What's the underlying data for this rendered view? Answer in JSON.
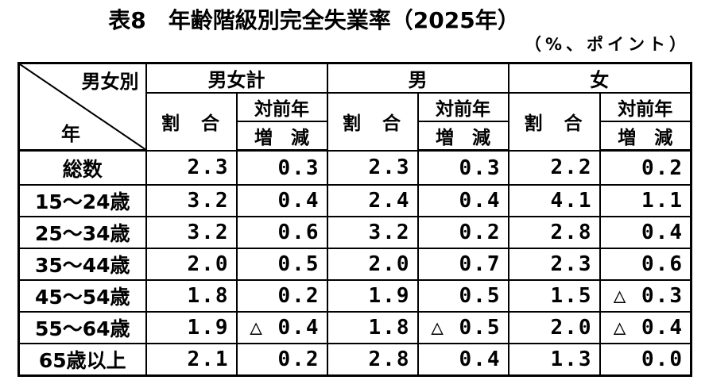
{
  "page": {
    "background_color": "#ffffff",
    "text_color": "#000000"
  },
  "title": "表8　年齢階級別完全失業率（2025年）",
  "unit_note": "（%、ポイント）",
  "table": {
    "corner": {
      "top_right_label": "男女別",
      "bottom_left_label": "年"
    },
    "groups": [
      {
        "label": "男女計"
      },
      {
        "label": "男"
      },
      {
        "label": "女"
      }
    ],
    "subheaders": {
      "ratio": "割　合",
      "yoy_line1": "対前年",
      "yoy_line2": "増　減"
    },
    "rows": [
      {
        "label": "総数",
        "bold": true,
        "values": [
          "2.3",
          "0.3",
          "2.3",
          "0.3",
          "2.2",
          "0.2"
        ]
      },
      {
        "label": "15〜24歳",
        "bold": false,
        "values": [
          "3.2",
          "0.4",
          "2.4",
          "0.4",
          "4.1",
          "1.1"
        ]
      },
      {
        "label": "25〜34歳",
        "bold": false,
        "values": [
          "3.2",
          "0.6",
          "3.2",
          "0.2",
          "2.8",
          "0.4"
        ]
      },
      {
        "label": "35〜44歳",
        "bold": false,
        "values": [
          "2.0",
          "0.5",
          "2.0",
          "0.7",
          "2.3",
          "0.6"
        ]
      },
      {
        "label": "45〜54歳",
        "bold": false,
        "values": [
          "1.8",
          "0.2",
          "1.9",
          "0.5",
          "1.5",
          "△ 0.3"
        ]
      },
      {
        "label": "55〜64歳",
        "bold": false,
        "values": [
          "1.9",
          "△ 0.4",
          "1.8",
          "△ 0.5",
          "2.0",
          "△ 0.4"
        ]
      },
      {
        "label": "65歳以上",
        "bold": false,
        "values": [
          "2.1",
          "0.2",
          "2.8",
          "0.4",
          "1.3",
          "0.0"
        ]
      }
    ]
  }
}
